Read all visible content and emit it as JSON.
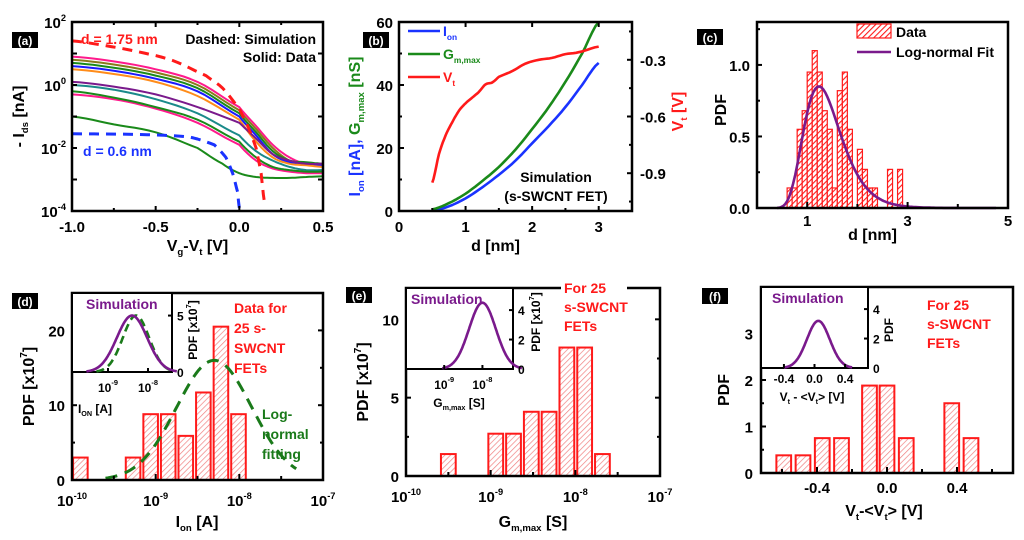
{
  "chart_data": [
    {
      "id": "a",
      "panel_label": "(a)",
      "type": "line",
      "xlabel": "V_g-V_t [V]",
      "ylabel": "- I_ds [nA]",
      "xlim": [
        -1.0,
        0.5
      ],
      "ylim_log10": [
        -4,
        2
      ],
      "y_scale": "log",
      "xticks": [
        "-1.0",
        "-0.5",
        "0.0",
        "0.5"
      ],
      "xtick_values": [
        -1.0,
        -0.5,
        0.0,
        0.5
      ],
      "yticks": [
        {
          "base": "10",
          "exp": "-4",
          "value": -4
        },
        {
          "base": "10",
          "exp": "-2",
          "value": -2
        },
        {
          "base": "10",
          "exp": "0",
          "value": 0
        },
        {
          "base": "10",
          "exp": "2",
          "value": 2
        }
      ],
      "annotations": {
        "legend_line1": "Dashed: Simulation",
        "legend_line2": "Solid: Data",
        "label_175": "d = 1.75 nm",
        "label_06": "d = 0.6 nm"
      },
      "colors": {
        "sim_175": "#ff1a1a",
        "sim_06": "#1a33ff"
      },
      "series_sim": [
        {
          "name": "d = 1.75 nm (simulation)",
          "color": "#ff1a1a",
          "x": [
            -1.0,
            -0.8,
            -0.6,
            -0.4,
            -0.2,
            -0.1,
            0.0,
            0.05,
            0.1,
            0.13,
            0.15
          ],
          "log_y": [
            1.4,
            1.25,
            1.05,
            0.78,
            0.3,
            -0.1,
            -0.75,
            -1.3,
            -2.0,
            -2.8,
            -3.7
          ]
        },
        {
          "name": "d = 0.6 nm (simulation)",
          "color": "#1a33ff",
          "x": [
            -1.0,
            -0.6,
            -0.3,
            -0.15,
            -0.08,
            -0.04,
            -0.01,
            0.0
          ],
          "log_y": [
            -1.55,
            -1.57,
            -1.65,
            -1.9,
            -2.3,
            -2.8,
            -3.4,
            -3.9
          ]
        }
      ],
      "series_data": [
        {
          "color": "#ff1a8c",
          "x": [
            -1.0,
            -0.75,
            -0.5,
            -0.25,
            0.0,
            0.1,
            0.2,
            0.3,
            0.4,
            0.5
          ],
          "log_y": [
            0.9,
            0.75,
            0.5,
            0.1,
            -0.7,
            -1.3,
            -1.9,
            -2.3,
            -2.5,
            -2.5
          ]
        },
        {
          "color": "#8a7a1a",
          "x": [
            -1.0,
            -0.75,
            -0.5,
            -0.25,
            0.0,
            0.1,
            0.2,
            0.3,
            0.4,
            0.5
          ],
          "log_y": [
            0.8,
            0.65,
            0.4,
            0.0,
            -0.8,
            -1.4,
            -2.0,
            -2.4,
            -2.5,
            -2.55
          ]
        },
        {
          "color": "#1a8a1a",
          "x": [
            -1.0,
            -0.75,
            -0.5,
            -0.25,
            0.0,
            0.1,
            0.2,
            0.3,
            0.4,
            0.5
          ],
          "log_y": [
            0.7,
            0.55,
            0.3,
            -0.1,
            -0.9,
            -1.5,
            -2.1,
            -2.4,
            -2.45,
            -2.5
          ]
        },
        {
          "color": "#1a1aff",
          "x": [
            -1.0,
            -0.75,
            -0.5,
            -0.25,
            0.0,
            0.1,
            0.2,
            0.3,
            0.4,
            0.5
          ],
          "log_y": [
            0.6,
            0.45,
            0.2,
            -0.2,
            -1.0,
            -1.6,
            -2.2,
            -2.45,
            -2.5,
            -2.55
          ]
        },
        {
          "color": "#ff8c1a",
          "x": [
            -1.0,
            -0.75,
            -0.5,
            -0.25,
            0.0,
            0.1,
            0.2,
            0.3,
            0.4,
            0.5
          ],
          "log_y": [
            0.5,
            0.35,
            0.1,
            -0.35,
            -1.1,
            -1.8,
            -2.3,
            -2.5,
            -2.55,
            -2.6
          ]
        },
        {
          "color": "#7a1a8c",
          "x": [
            -1.0,
            -0.75,
            -0.5,
            -0.25,
            0.0,
            0.1,
            0.2,
            0.3,
            0.4,
            0.5
          ],
          "log_y": [
            0.1,
            -0.05,
            -0.3,
            -0.7,
            -1.2,
            -1.7,
            -2.2,
            -2.4,
            -2.5,
            -2.5
          ]
        },
        {
          "color": "#1a8a8a",
          "x": [
            -1.0,
            -0.75,
            -0.5,
            -0.25,
            0.0,
            0.1,
            0.2,
            0.3,
            0.4,
            0.5
          ],
          "log_y": [
            0.0,
            -0.15,
            -0.45,
            -0.9,
            -1.6,
            -2.1,
            -2.4,
            -2.6,
            -2.7,
            -2.7
          ]
        },
        {
          "color": "#ff1a8c",
          "x": [
            -1.0,
            -0.75,
            -0.5,
            -0.25,
            0.0,
            0.1,
            0.2,
            0.3,
            0.4,
            0.5
          ],
          "log_y": [
            -0.3,
            -0.45,
            -0.75,
            -1.2,
            -1.9,
            -2.4,
            -2.65,
            -2.75,
            -2.8,
            -2.8
          ]
        },
        {
          "color": "#1a8a1a",
          "x": [
            -1.0,
            -0.75,
            -0.5,
            -0.25,
            0.0,
            0.1,
            0.2,
            0.3,
            0.4,
            0.5
          ],
          "log_y": [
            -0.2,
            -0.4,
            -0.7,
            -1.1,
            -1.8,
            -2.3,
            -2.6,
            -2.7,
            -2.75,
            -2.75
          ]
        },
        {
          "color": "#1a8a1a",
          "x": [
            -1.0,
            -0.75,
            -0.5,
            -0.25,
            -0.1,
            0.0,
            0.1,
            0.2,
            0.3,
            0.4,
            0.5
          ],
          "log_y": [
            -1.0,
            -1.25,
            -1.5,
            -2.0,
            -2.5,
            -2.8,
            -2.92,
            -2.95,
            -2.95,
            -2.92,
            -2.9
          ]
        }
      ]
    },
    {
      "id": "b",
      "panel_label": "(b)",
      "type": "line",
      "xlabel": "d [nm]",
      "ylabel_parts": [
        {
          "text": "I",
          "sub": "on",
          "suffix": " [nA], ",
          "color": "#1a33ff"
        },
        {
          "text": "G",
          "sub": "m,max",
          "suffix": " [nS]",
          "color": "#1a8a1a"
        }
      ],
      "y2label": "V_t [V]",
      "xlim": [
        0,
        3.5
      ],
      "ylim": [
        0,
        60
      ],
      "y2lim": [
        -1.1,
        -0.1
      ],
      "xticks": [
        "0",
        "1",
        "2",
        "3"
      ],
      "xtick_values": [
        0,
        1,
        2,
        3
      ],
      "yticks": [
        "0",
        "20",
        "40",
        "60"
      ],
      "ytick_values": [
        0,
        20,
        40,
        60
      ],
      "y2ticks": [
        "-0.9",
        "-0.6",
        "-0.3"
      ],
      "y2tick_values": [
        -0.9,
        -0.6,
        -0.3
      ],
      "legend": [
        {
          "label": "I",
          "sub": "on",
          "color": "#1a33ff"
        },
        {
          "label": "G",
          "sub": "m,max",
          "color": "#1a8a1a"
        },
        {
          "label": "V",
          "sub": "t",
          "color": "#ff1a1a"
        }
      ],
      "annotation_line1": "Simulation",
      "annotation_line2": "(s-SWCNT FET)",
      "series": [
        {
          "name": "I_on",
          "axis": "left",
          "color": "#1a33ff",
          "x": [
            0.5,
            0.75,
            1.0,
            1.25,
            1.5,
            1.75,
            2.0,
            2.25,
            2.5,
            2.75,
            3.0
          ],
          "y": [
            0,
            1.5,
            4,
            7.5,
            11.5,
            16,
            21.5,
            27,
            33,
            40,
            47
          ]
        },
        {
          "name": "G_m,max",
          "axis": "left",
          "color": "#1a8a1a",
          "x": [
            0.5,
            0.75,
            1.0,
            1.25,
            1.5,
            1.75,
            2.0,
            2.25,
            2.5,
            2.75,
            3.0
          ],
          "y": [
            0.5,
            2.5,
            5.5,
            9.5,
            14,
            19.5,
            26,
            33,
            41,
            50,
            60
          ]
        },
        {
          "name": "V_t",
          "axis": "right",
          "color": "#ff1a1a",
          "x": [
            0.5,
            0.6,
            0.7,
            0.8,
            0.9,
            1.0,
            1.1,
            1.2,
            1.3,
            1.4,
            1.5,
            1.7,
            1.9,
            2.1,
            2.3,
            2.5,
            2.7,
            3.0
          ],
          "y": [
            -0.95,
            -0.8,
            -0.7,
            -0.63,
            -0.57,
            -0.53,
            -0.5,
            -0.47,
            -0.43,
            -0.42,
            -0.39,
            -0.36,
            -0.32,
            -0.3,
            -0.29,
            -0.27,
            -0.26,
            -0.23
          ]
        }
      ]
    },
    {
      "id": "c",
      "panel_label": "(c)",
      "type": "bar",
      "xlabel": "d [nm]",
      "ylabel": "PDF",
      "xlim": [
        0,
        5
      ],
      "ylim": [
        0,
        1.3
      ],
      "xticks": [
        "1",
        "3",
        "5"
      ],
      "xtick_values": [
        1,
        3,
        5
      ],
      "yticks": [
        "0.0",
        "0.5",
        "1.0"
      ],
      "ytick_values": [
        0,
        0.5,
        1.0
      ],
      "legend": [
        {
          "label": "Data",
          "kind": "hatched-bar",
          "color": "#ff1a1a"
        },
        {
          "label": "Log-normal Fit",
          "kind": "line",
          "color": "#7a1a8c"
        }
      ],
      "bin_width": 0.1,
      "bins": [
        {
          "x": 0.65,
          "value": 0.14
        },
        {
          "x": 0.75,
          "value": 0.14
        },
        {
          "x": 0.85,
          "value": 0.55
        },
        {
          "x": 0.95,
          "value": 0.68
        },
        {
          "x": 1.05,
          "value": 0.95
        },
        {
          "x": 1.15,
          "value": 1.1
        },
        {
          "x": 1.25,
          "value": 0.95
        },
        {
          "x": 1.35,
          "value": 0.68
        },
        {
          "x": 1.45,
          "value": 0.55
        },
        {
          "x": 1.55,
          "value": 0.14
        },
        {
          "x": 1.65,
          "value": 0.82
        },
        {
          "x": 1.75,
          "value": 0.95
        },
        {
          "x": 1.85,
          "value": 0.55
        },
        {
          "x": 2.05,
          "value": 0.41
        },
        {
          "x": 2.15,
          "value": 0.27
        },
        {
          "x": 2.25,
          "value": 0.14
        },
        {
          "x": 2.35,
          "value": 0.14
        },
        {
          "x": 2.65,
          "value": 0.27
        },
        {
          "x": 2.85,
          "value": 0.27
        }
      ],
      "fit": {
        "name": "Log-normal Fit",
        "color": "#7a1a8c",
        "mu_ln": 0.3,
        "sigma_ln": 0.3,
        "peak": 0.85
      }
    },
    {
      "id": "d",
      "panel_label": "(d)",
      "type": "bar",
      "xlabel": "I_on [A]",
      "ylabel": "PDF [x10^7]",
      "x_scale": "log",
      "xlim_log10": [
        -10,
        -7
      ],
      "ylim": [
        0,
        25
      ],
      "xticks": [
        {
          "base": "10",
          "exp": "-10",
          "value": -10
        },
        {
          "base": "10",
          "exp": "-9",
          "value": -9
        },
        {
          "base": "10",
          "exp": "-8",
          "value": -8
        },
        {
          "base": "10",
          "exp": "-7",
          "value": -7
        }
      ],
      "yticks": [
        "0",
        "10",
        "20"
      ],
      "ytick_values": [
        0,
        10,
        20
      ],
      "bin_width_log10": 0.21,
      "bins": [
        {
          "log_x": -9.9,
          "value": 3
        },
        {
          "log_x": -9.27,
          "value": 3
        },
        {
          "log_x": -9.06,
          "value": 8.8
        },
        {
          "log_x": -8.85,
          "value": 8.8
        },
        {
          "log_x": -8.64,
          "value": 5.9
        },
        {
          "log_x": -8.43,
          "value": 11.7
        },
        {
          "log_x": -8.22,
          "value": 20.5
        },
        {
          "log_x": -8.01,
          "value": 8.8
        }
      ],
      "fit": {
        "name": "Log-normal fitting",
        "color": "#1a7a1a",
        "center_log10": -8.3,
        "sigma_log10": 0.45,
        "peak": 16
      },
      "annotations": {
        "data_line1": "Data for",
        "data_line2": "25 s-",
        "data_line3": "SWCNT",
        "data_line4": "FETs",
        "fit_line1": "Log-",
        "fit_line2": "normal",
        "fit_line3": "fitting"
      },
      "inset": {
        "title": "Simulation",
        "xlabel": "I_ON [A]",
        "ylabel": "PDF [x10^7]",
        "xticks": [
          {
            "base": "10",
            "exp": "-9",
            "value": -9
          },
          {
            "base": "10",
            "exp": "-8",
            "value": -8
          }
        ],
        "yticks": [
          "0",
          "5"
        ],
        "xlim_log10": [
          -9.9,
          -7.4
        ],
        "ylim": [
          0,
          7
        ],
        "sim": {
          "color": "#7a1a8c",
          "center_log10": -8.4,
          "sigma_log10": 0.38,
          "peak": 5
        },
        "fit": {
          "color": "#1a7a1a",
          "center_log10": -8.3,
          "sigma_log10": 0.33,
          "peak": 5
        }
      }
    },
    {
      "id": "e",
      "panel_label": "(e)",
      "type": "bar",
      "xlabel": "G_m,max [S]",
      "ylabel": "PDF [x10^7]",
      "x_scale": "log",
      "xlim_log10": [
        -10,
        -7
      ],
      "ylim": [
        0,
        12
      ],
      "xticks": [
        {
          "base": "10",
          "exp": "-10",
          "value": -10
        },
        {
          "base": "10",
          "exp": "-9",
          "value": -9
        },
        {
          "base": "10",
          "exp": "-8",
          "value": -8
        },
        {
          "base": "10",
          "exp": "-7",
          "value": -7
        }
      ],
      "yticks": [
        "0",
        "5",
        "10"
      ],
      "ytick_values": [
        0,
        5,
        10
      ],
      "bin_width_log10": 0.21,
      "bins": [
        {
          "log_x": -9.5,
          "value": 1.4
        },
        {
          "log_x": -8.94,
          "value": 2.7
        },
        {
          "log_x": -8.73,
          "value": 2.7
        },
        {
          "log_x": -8.52,
          "value": 4.1
        },
        {
          "log_x": -8.31,
          "value": 4.1
        },
        {
          "log_x": -8.1,
          "value": 8.2
        },
        {
          "log_x": -7.89,
          "value": 8.2
        },
        {
          "log_x": -7.68,
          "value": 1.4
        }
      ],
      "annotations": {
        "line1": "For 25",
        "line2": "s-SWCNT",
        "line3": "FETs"
      },
      "inset": {
        "title": "Simulation",
        "xlabel": "G_m,max [S]",
        "ylabel": "PDF [x10^7]",
        "xticks": [
          {
            "base": "10",
            "exp": "-9",
            "value": -9
          },
          {
            "base": "10",
            "exp": "-8",
            "value": -8
          }
        ],
        "yticks": [
          "0",
          "2",
          "4"
        ],
        "xlim_log10": [
          -10,
          -7.2
        ],
        "ylim": [
          0,
          5.5
        ],
        "sim": {
          "color": "#7a1a8c",
          "center_log10": -8.0,
          "sigma_log10": 0.35,
          "peak": 4.5
        }
      }
    },
    {
      "id": "f",
      "panel_label": "(f)",
      "type": "bar",
      "xlabel": "V_t-<V_t> [V]",
      "ylabel": "PDF",
      "xlim": [
        -0.72,
        0.72
      ],
      "ylim": [
        0,
        4
      ],
      "xticks": [
        "-0.4",
        "0.0",
        "0.4"
      ],
      "xtick_values": [
        -0.4,
        0.0,
        0.4
      ],
      "yticks": [
        "0",
        "1",
        "2",
        "3"
      ],
      "ytick_values": [
        0,
        1,
        2,
        3
      ],
      "bin_width": 0.107,
      "bins": [
        {
          "x": -0.59,
          "value": 0.38
        },
        {
          "x": -0.48,
          "value": 0.38
        },
        {
          "x": -0.37,
          "value": 0.75
        },
        {
          "x": -0.26,
          "value": 0.75
        },
        {
          "x": -0.1,
          "value": 1.88
        },
        {
          "x": 0.0,
          "value": 1.88
        },
        {
          "x": 0.11,
          "value": 0.75
        },
        {
          "x": 0.37,
          "value": 1.5
        },
        {
          "x": 0.48,
          "value": 0.75
        }
      ],
      "annotations": {
        "line1": "For 25",
        "line2": "s-SWCNT",
        "line3": "FETs"
      },
      "inset": {
        "title": "Simulation",
        "xlabel": "V_t - <V_t> [V]",
        "ylabel": "PDF",
        "xticks": [
          "-0.4",
          "0.0",
          "0.4"
        ],
        "xtick_values": [
          -0.4,
          0.0,
          0.4
        ],
        "yticks": [
          "0",
          "2",
          "4"
        ],
        "ytick_values": [
          0,
          2,
          4
        ],
        "xlim": [
          -0.7,
          0.7
        ],
        "ylim": [
          0,
          5.5
        ],
        "sim": {
          "color": "#7a1a8c",
          "center": 0.05,
          "sigma": 0.15,
          "peak": 3.2
        }
      }
    }
  ]
}
